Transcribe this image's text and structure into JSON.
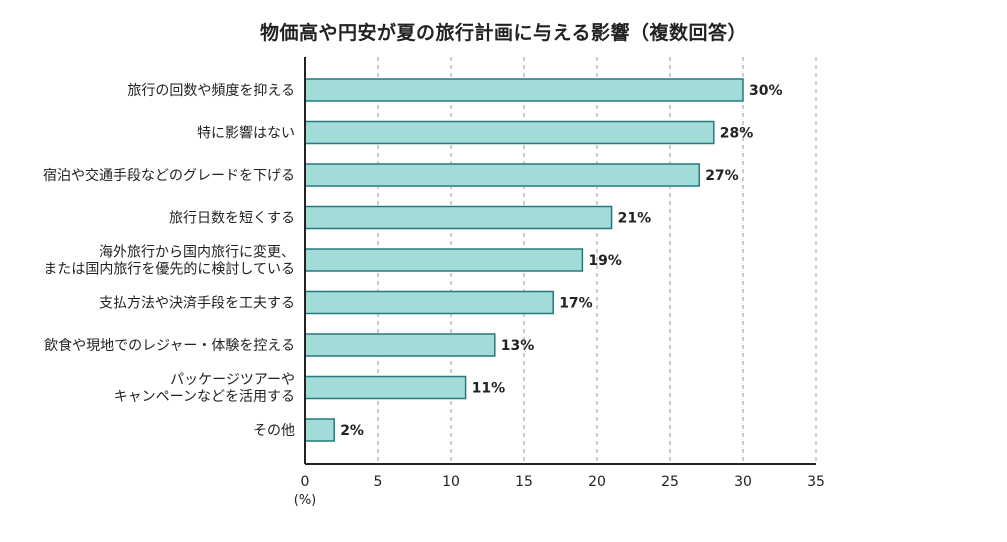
{
  "chart_data": {
    "type": "bar",
    "orientation": "horizontal",
    "title": "物価高や円安が夏の旅行計画に与える影響（複数回答）",
    "categories": [
      "旅行の回数や頻度を抑える",
      "特に影響はない",
      "宿泊や交通手段などのグレードを下げる",
      "旅行日数を短くする",
      "海外旅行から国内旅行に変更、\nまたは国内旅行を優先的に検討している",
      "支払方法や決済手段を工夫する",
      "飲食や現地でのレジャー・体験を控える",
      "パッケージツアーや\nキャンペーンなどを活用する",
      "その他"
    ],
    "values": [
      30,
      28,
      27,
      21,
      19,
      17,
      13,
      11,
      2
    ],
    "value_labels": [
      "30%",
      "28%",
      "27%",
      "21%",
      "19%",
      "17%",
      "13%",
      "11%",
      "2%"
    ],
    "xlim": [
      0,
      35
    ],
    "xticks": [
      0,
      5,
      10,
      15,
      20,
      25,
      30,
      35
    ],
    "x_unit": "(%)",
    "grid": "vertical-dashed",
    "bar_color": "#a3dbd9",
    "bar_edge_color": "#237a7e"
  }
}
